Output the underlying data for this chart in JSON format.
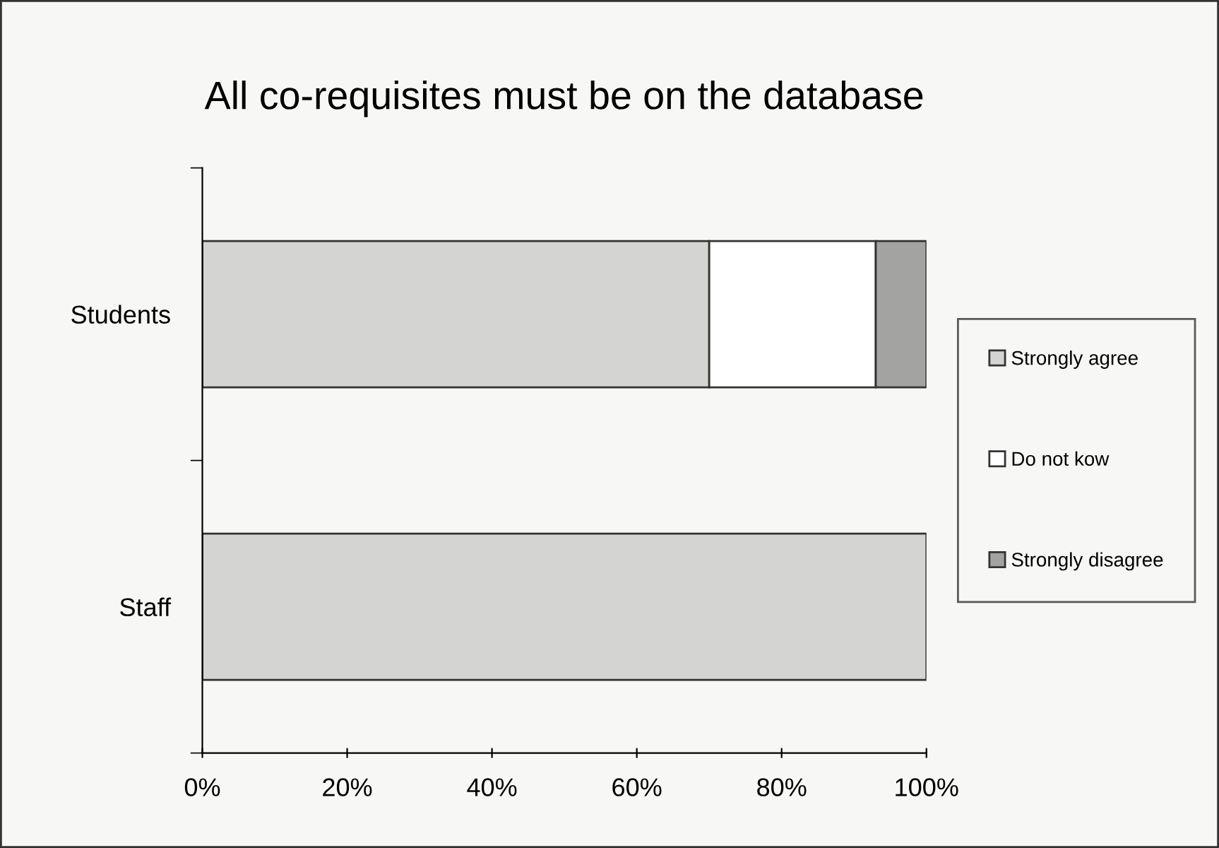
{
  "chart_data": {
    "type": "bar",
    "title": "All co-requisites must be on the database",
    "orientation": "horizontal",
    "stacked": true,
    "categories": [
      "Students",
      "Staff"
    ],
    "series": [
      {
        "name": "Strongly agree",
        "color": "#d4d4d2",
        "values": [
          70,
          100
        ]
      },
      {
        "name": "Do not kow",
        "color": "#ffffff",
        "values": [
          23,
          0
        ]
      },
      {
        "name": "Strongly disagree",
        "color": "#a3a3a1",
        "values": [
          7,
          0
        ]
      }
    ],
    "xlim": [
      0,
      100
    ],
    "xticks": [
      {
        "value": 0,
        "label": "0%"
      },
      {
        "value": 20,
        "label": "20%"
      },
      {
        "value": 40,
        "label": "40%"
      },
      {
        "value": 60,
        "label": "60%"
      },
      {
        "value": 80,
        "label": "80%"
      },
      {
        "value": 100,
        "label": "100%"
      }
    ],
    "legend": "right",
    "grid": false
  }
}
